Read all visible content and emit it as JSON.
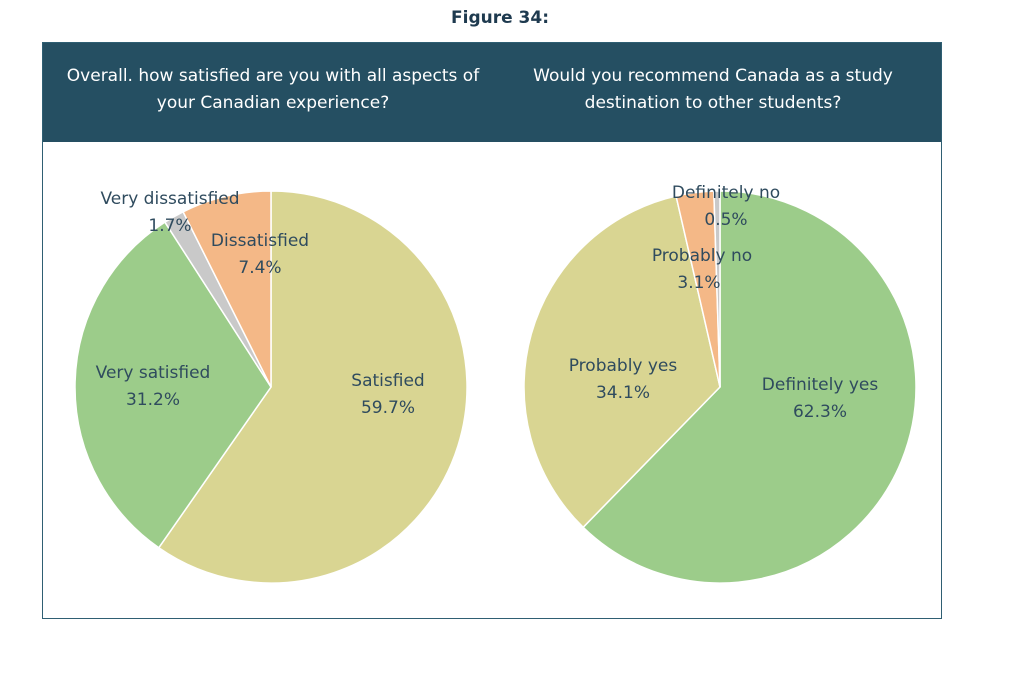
{
  "figure_title": "Figure 34:",
  "colors": {
    "header_bg": "#254f62",
    "very_satisfied": "#9ccc8a",
    "satisfied": "#d9d592",
    "dissatisfied": "#f4b887",
    "very_dissatisfied": "#c9c9c9"
  },
  "chart_data": [
    {
      "type": "pie",
      "title": "Overall. how satisfied are you with all aspects of your Canadian experience?",
      "slices": [
        {
          "label": "Satisfied",
          "value": 59.7,
          "value_label": "59.7%",
          "color": "#d9d592"
        },
        {
          "label": "Very satisfied",
          "value": 31.2,
          "value_label": "31.2%",
          "color": "#9ccc8a"
        },
        {
          "label": "Very dissatisfied",
          "value": 1.7,
          "value_label": "1.7%",
          "color": "#c9c9c9"
        },
        {
          "label": "Dissatisfied",
          "value": 7.4,
          "value_label": "7.4%",
          "color": "#f4b887"
        }
      ]
    },
    {
      "type": "pie",
      "title": "Would you recommend Canada as a study destination to other students?",
      "slices": [
        {
          "label": "Definitely yes",
          "value": 62.3,
          "value_label": "62.3%",
          "color": "#9ccc8a"
        },
        {
          "label": "Probably yes",
          "value": 34.1,
          "value_label": "34.1%",
          "color": "#d9d592"
        },
        {
          "label": "Probably no",
          "value": 3.1,
          "value_label": "3.1%",
          "color": "#f4b887"
        },
        {
          "label": "Definitely no",
          "value": 0.5,
          "value_label": "0.5%",
          "color": "#c9c9c9"
        }
      ]
    }
  ]
}
